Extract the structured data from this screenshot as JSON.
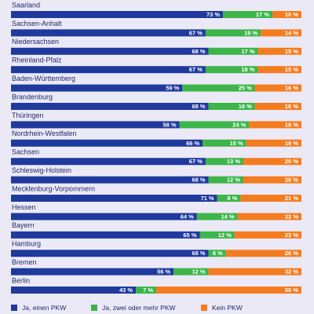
{
  "chart_data": {
    "type": "stacked-bar-horizontal",
    "categories": [
      "Saarland",
      "Sachsen-Anhalt",
      "Niedersachsen",
      "Rheinland-Pfalz",
      "Baden-Württemberg",
      "Brandenburg",
      "Thüringen",
      "Nordrhein-Westfalen",
      "Sachsen",
      "Schleswig-Holstein",
      "Mecklenburg-Vorpommern",
      "Hessen",
      "Bayern",
      "Hamburg",
      "Bremen",
      "Berlin"
    ],
    "series": [
      {
        "name": "Ja, einen PKW",
        "color": "#1f3a9c",
        "values": [
          73,
          67,
          68,
          67,
          59,
          68,
          58,
          66,
          67,
          68,
          71,
          64,
          65,
          68,
          56,
          43
        ],
        "value_labels": [
          "73 %",
          "67 %",
          "68 %",
          "67 %",
          "59 %",
          "68 %",
          "58 %",
          "66 %",
          "67 %",
          "68 %",
          "71 %",
          "64 %",
          "65 %",
          "68 %",
          "56 %",
          "43 %"
        ]
      },
      {
        "name": "Ja, zwei oder mehr PKW",
        "color": "#3db54a",
        "values": [
          17,
          19,
          17,
          18,
          25,
          16,
          24,
          15,
          13,
          12,
          8,
          14,
          12,
          6,
          12,
          7
        ],
        "value_labels": [
          "17 %",
          "19 %",
          "17 %",
          "18 %",
          "25 %",
          "16 %",
          "24 %",
          "15 %",
          "13 %",
          "12 %",
          "8 %",
          "14 %",
          "12 %",
          "6 %",
          "12 %",
          "7 %"
        ]
      },
      {
        "name": "Kein PKW",
        "color": "#f47c20",
        "values": [
          10,
          14,
          15,
          15,
          16,
          16,
          18,
          19,
          20,
          20,
          21,
          22,
          23,
          26,
          32,
          50
        ],
        "value_labels": [
          "10 %",
          "14 %",
          "15 %",
          "15 %",
          "16 %",
          "16 %",
          "18 %",
          "19 %",
          "20 %",
          "20 %",
          "21 %",
          "22 %",
          "23 %",
          "26 %",
          "32 %",
          "50 %"
        ]
      }
    ],
    "legend": "bottom"
  }
}
